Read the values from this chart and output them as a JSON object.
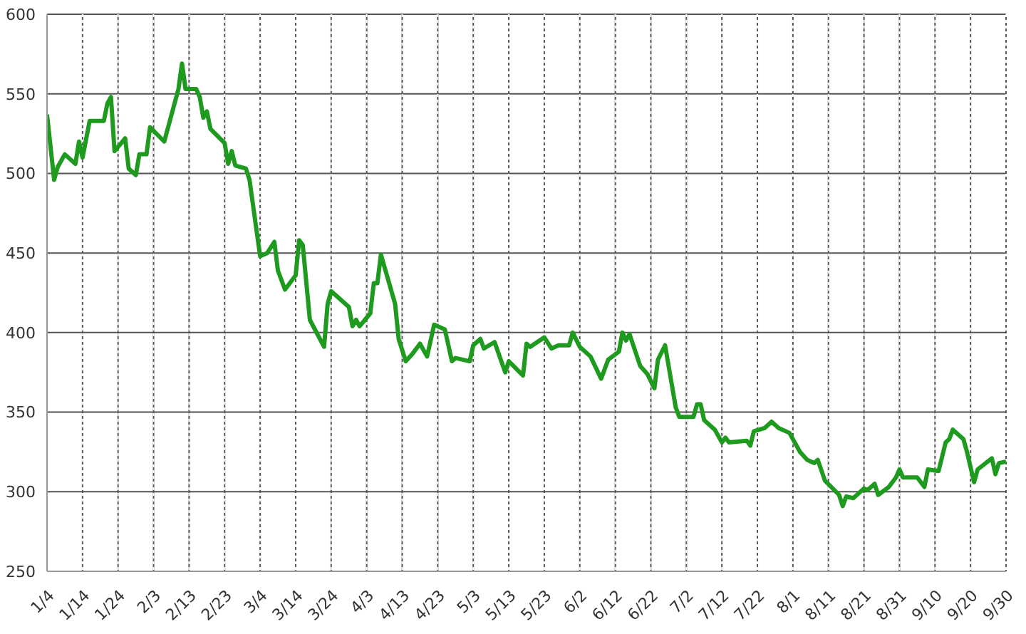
{
  "chart_data": {
    "type": "line",
    "x": [
      "--01-04",
      "--01-06",
      "--01-07",
      "--01-09",
      "--01-12",
      "--01-13",
      "--01-14",
      "--01-16",
      "--01-20",
      "--01-21",
      "--01-22",
      "--01-23",
      "--01-26",
      "--01-27",
      "--01-29",
      "--01-30",
      "--02-01",
      "--02-02",
      "--02-06",
      "--02-10",
      "--02-11",
      "--02-12",
      "--02-15",
      "--02-16",
      "--02-17",
      "--02-18",
      "--02-19",
      "--02-23",
      "--02-24",
      "--02-25",
      "--02-26",
      "--02-29",
      "--03-01",
      "--03-04",
      "--03-06",
      "--03-08",
      "--03-09",
      "--03-11",
      "--03-14",
      "--03-15",
      "--03-16",
      "--03-18",
      "--03-22",
      "--03-23",
      "--03-24",
      "--03-29",
      "--03-30",
      "--03-31",
      "--04-01",
      "--04-04",
      "--04-05",
      "--04-06",
      "--04-07",
      "--04-11",
      "--04-12",
      "--04-14",
      "--04-16",
      "--04-18",
      "--04-20",
      "--04-22",
      "--04-25",
      "--04-27",
      "--04-28",
      "--05-02",
      "--05-03",
      "--05-05",
      "--05-06",
      "--05-09",
      "--05-12",
      "--05-13",
      "--05-17",
      "--05-18",
      "--05-19",
      "--05-23",
      "--05-25",
      "--05-27",
      "--05-30",
      "--05-31",
      "--06-02",
      "--06-05",
      "--06-08",
      "--06-10",
      "--06-13",
      "--06-14",
      "--06-15",
      "--06-16",
      "--06-19",
      "--06-21",
      "--06-23",
      "--06-24",
      "--06-26",
      "--06-29",
      "--06-30",
      "--07-04",
      "--07-05",
      "--07-06",
      "--07-07",
      "--07-10",
      "--07-12",
      "--07-13",
      "--07-14",
      "--07-19",
      "--07-20",
      "--07-21",
      "--07-24",
      "--07-26",
      "--07-28",
      "--07-31",
      "--08-03",
      "--08-05",
      "--08-07",
      "--08-08",
      "--08-10",
      "--08-14",
      "--08-15",
      "--08-16",
      "--08-18",
      "--08-21",
      "--08-22",
      "--08-24",
      "--08-25",
      "--08-28",
      "--08-30",
      "--08-31",
      "--09-01",
      "--09-05",
      "--09-07",
      "--09-08",
      "--09-11",
      "--09-13",
      "--09-14",
      "--09-15",
      "--09-18",
      "--09-19",
      "--09-21",
      "--09-22",
      "--09-26",
      "--09-27",
      "--09-28",
      "--09-30"
    ],
    "series": [
      {
        "color": "#1e9a1e",
        "values": [
          537,
          496,
          504,
          512,
          506,
          520,
          510,
          533,
          533,
          544,
          548,
          514,
          522,
          503,
          499,
          512,
          512,
          529,
          520,
          553,
          569,
          553,
          553,
          548,
          535,
          539,
          528,
          519,
          506,
          514,
          505,
          503,
          496,
          448,
          450,
          457,
          439,
          427,
          436,
          458,
          455,
          408,
          391,
          418,
          426,
          416,
          404,
          408,
          404,
          412,
          431,
          431,
          449,
          418,
          396,
          382,
          387,
          393,
          385,
          405,
          402,
          382,
          384,
          382,
          392,
          396,
          390,
          394,
          375,
          382,
          373,
          393,
          391,
          397,
          390,
          392,
          392,
          400,
          391,
          385,
          371,
          383,
          388,
          400,
          395,
          399,
          379,
          374,
          365,
          383,
          392,
          353,
          347,
          347,
          355,
          355,
          345,
          339,
          331,
          334,
          331,
          332,
          329,
          338,
          340,
          344,
          340,
          337,
          325,
          320,
          318,
          320,
          307,
          298,
          291,
          297,
          296,
          302,
          301,
          305,
          298,
          303,
          309,
          314,
          309,
          309,
          303,
          314,
          313,
          331,
          333,
          339,
          333,
          325,
          306,
          314,
          321,
          311,
          318,
          319
        ]
      }
    ],
    "xlim": [
      "--01-04",
      "--09-30"
    ],
    "xticks": [
      {
        "value": "--01-04",
        "label": "1/4"
      },
      {
        "value": "--01-14",
        "label": "1/14"
      },
      {
        "value": "--01-24",
        "label": "1/24"
      },
      {
        "value": "--02-03",
        "label": "2/3"
      },
      {
        "value": "--02-13",
        "label": "2/13"
      },
      {
        "value": "--02-23",
        "label": "2/23"
      },
      {
        "value": "--03-04",
        "label": "3/4"
      },
      {
        "value": "--03-14",
        "label": "3/14"
      },
      {
        "value": "--03-24",
        "label": "3/24"
      },
      {
        "value": "--04-03",
        "label": "4/3"
      },
      {
        "value": "--04-13",
        "label": "4/13"
      },
      {
        "value": "--04-23",
        "label": "4/23"
      },
      {
        "value": "--05-03",
        "label": "5/3"
      },
      {
        "value": "--05-13",
        "label": "5/13"
      },
      {
        "value": "--05-23",
        "label": "5/23"
      },
      {
        "value": "--06-02",
        "label": "6/2"
      },
      {
        "value": "--06-12",
        "label": "6/12"
      },
      {
        "value": "--06-22",
        "label": "6/22"
      },
      {
        "value": "--07-02",
        "label": "7/2"
      },
      {
        "value": "--07-12",
        "label": "7/12"
      },
      {
        "value": "--07-22",
        "label": "7/22"
      },
      {
        "value": "--08-01",
        "label": "8/1"
      },
      {
        "value": "--08-11",
        "label": "8/11"
      },
      {
        "value": "--08-21",
        "label": "8/21"
      },
      {
        "value": "--08-31",
        "label": "8/31"
      },
      {
        "value": "--09-10",
        "label": "9/10"
      },
      {
        "value": "--09-20",
        "label": "9/20"
      },
      {
        "value": "--09-30",
        "label": "9/30"
      }
    ],
    "ylim": [
      250,
      600
    ],
    "yticks": [
      250,
      300,
      350,
      400,
      450,
      500,
      550,
      600
    ],
    "grid": true,
    "legend": false,
    "marker": "none",
    "line_style": "solid"
  }
}
